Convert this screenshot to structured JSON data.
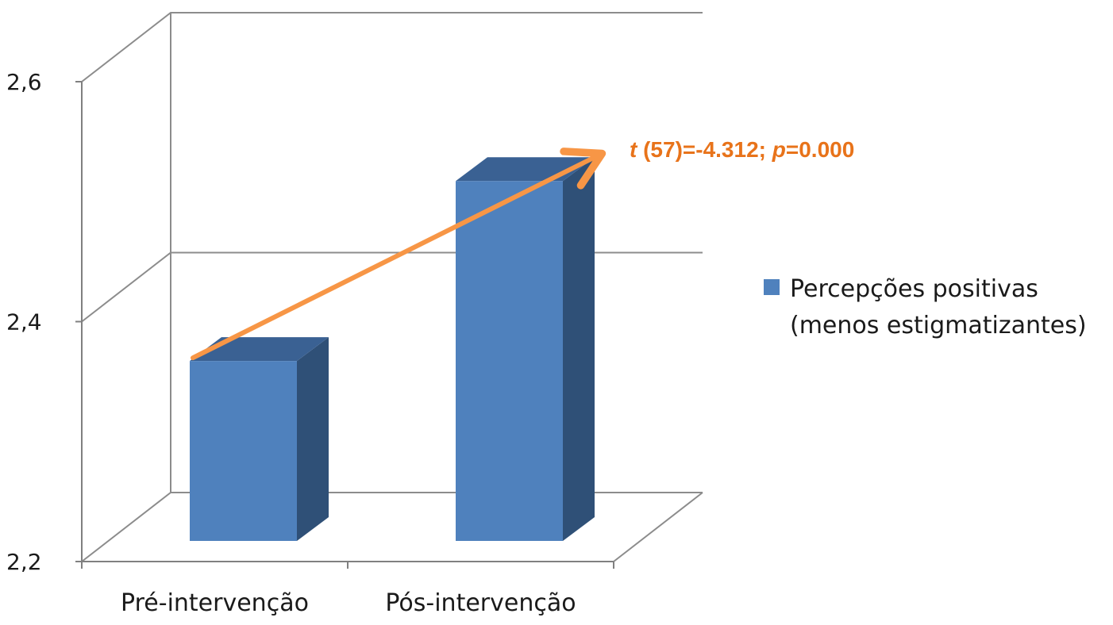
{
  "chart_data": {
    "type": "bar",
    "style": "3d-column",
    "categories": [
      "Pré-intervenção",
      "Pós-intervenção"
    ],
    "series": [
      {
        "name": "Percepções positivas (menos estigmatizantes)",
        "legend_lines": [
          "Percepções positivas",
          "(menos estigmatizantes)"
        ],
        "values": [
          2.35,
          2.5
        ],
        "color": "#4F81BD",
        "side_color": "#2F5077",
        "top_color": "#3A6193"
      }
    ],
    "yticks": [
      "2,2",
      "2,4",
      "2,6"
    ],
    "ytick_values": [
      2.2,
      2.4,
      2.6
    ],
    "ylim": [
      2.2,
      2.6
    ],
    "grid": true,
    "legend_position": "right",
    "annotation": {
      "t_symbol": "t",
      "t_rest": " (57)=-4.312; ",
      "p_symbol": "p",
      "p_rest": "=0.000",
      "color": "#E8731A",
      "arrow_color": "#F79646"
    }
  }
}
